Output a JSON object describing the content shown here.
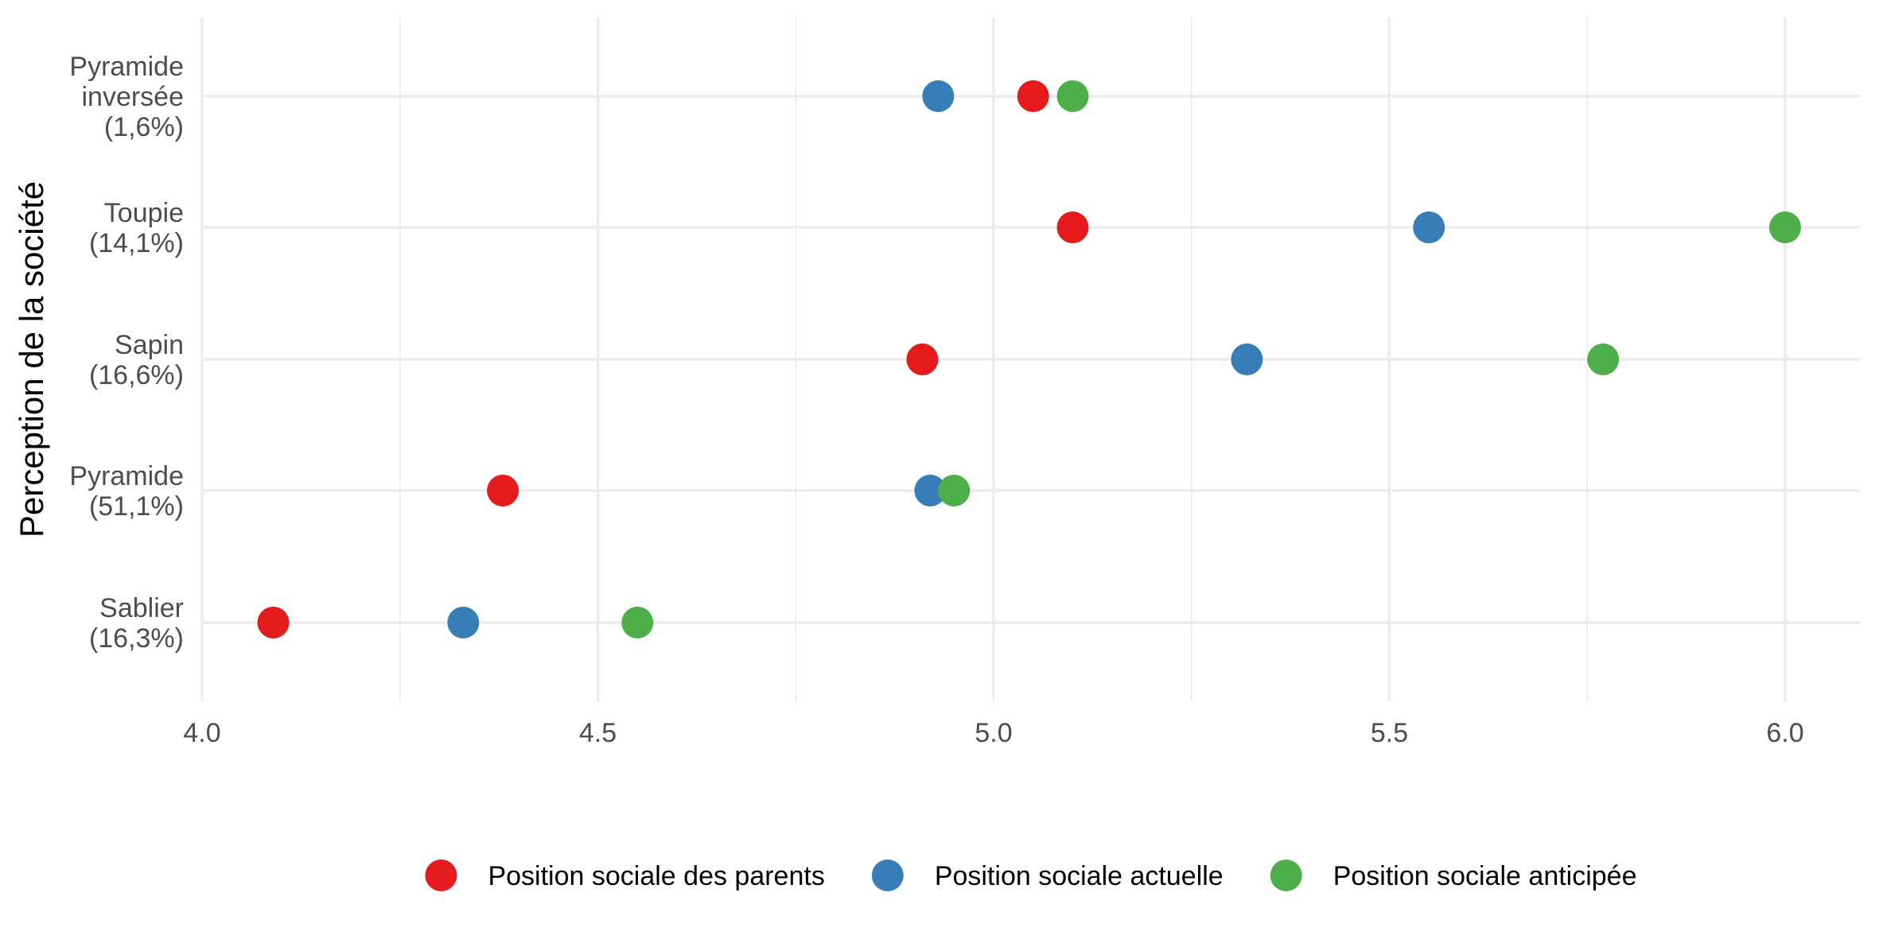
{
  "chart_data": {
    "type": "scatter",
    "title": "",
    "xlabel": "",
    "ylabel": "Perception de la société",
    "xlim": [
      4.0,
      6.08
    ],
    "x_ticks": [
      "4.0",
      "4.5",
      "5.0",
      "5.5",
      "6.0"
    ],
    "grid": true,
    "legend_position": "bottom",
    "categories": [
      "Pyramide\ninversée\n(1,6%)",
      "Toupie\n(14,1%)",
      "Sapin\n(16,6%)",
      "Pyramide\n(51,1%)",
      "Sablier\n(16,3%)"
    ],
    "series": [
      {
        "name": "Position sociale des parents",
        "color": "#e41a1c",
        "values": [
          5.05,
          5.1,
          4.91,
          4.38,
          4.09
        ]
      },
      {
        "name": "Position sociale actuelle",
        "color": "#377eb8",
        "values": [
          4.93,
          5.55,
          5.32,
          4.92,
          4.33
        ]
      },
      {
        "name": "Position sociale anticipée",
        "color": "#4daf4a",
        "values": [
          5.1,
          6.0,
          5.77,
          4.95,
          4.55
        ]
      }
    ]
  }
}
